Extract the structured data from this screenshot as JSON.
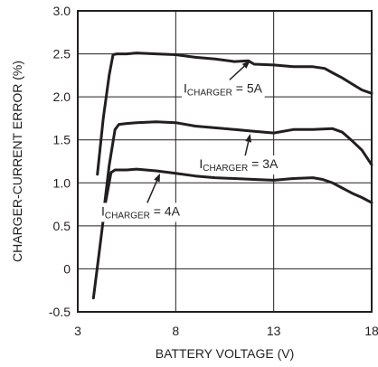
{
  "chart_data": {
    "type": "line",
    "title": "",
    "xlabel": "BATTERY VOLTAGE (V)",
    "ylabel": "CHARGER-CURRENT ERROR (%)",
    "xlim": [
      3,
      18
    ],
    "ylim": [
      -0.5,
      3.0
    ],
    "x_ticks": [
      3,
      8,
      13,
      18
    ],
    "y_ticks": [
      3.0,
      2.5,
      2.0,
      1.5,
      1.0,
      0.5,
      0,
      -0.5
    ],
    "x_tick_labels": [
      "3",
      "8",
      "13",
      "18"
    ],
    "y_tick_labels": [
      "3.0",
      "2.5",
      "2.0",
      "1.5",
      "1.0",
      "0.5",
      "0",
      "-0.5"
    ],
    "grid": true,
    "legend": "none",
    "series": [
      {
        "label_prefix": "I",
        "label_sub": "CHARGER",
        "label_suffix": " = 5A",
        "x": [
          4.0,
          4.3,
          4.6,
          4.8,
          5.0,
          5.5,
          6.0,
          7.0,
          8.0,
          9.0,
          10.0,
          11.0,
          11.7,
          12.0,
          13.0,
          14.0,
          15.0,
          15.6,
          16.0,
          16.5,
          17.0,
          17.5,
          18.0
        ],
        "y": [
          1.1,
          1.75,
          2.25,
          2.49,
          2.5,
          2.5,
          2.51,
          2.5,
          2.49,
          2.46,
          2.44,
          2.41,
          2.42,
          2.38,
          2.37,
          2.35,
          2.35,
          2.33,
          2.28,
          2.22,
          2.15,
          2.08,
          2.04
        ]
      },
      {
        "label_prefix": "I",
        "label_sub": "CHARGER",
        "label_suffix": " = 3A",
        "x": [
          4.3,
          4.6,
          4.9,
          5.1,
          5.5,
          6.0,
          7.0,
          8.0,
          9.0,
          10.0,
          11.0,
          12.0,
          13.0,
          14.0,
          15.0,
          16.0,
          16.5,
          17.0,
          17.5,
          18.0
        ],
        "y": [
          0.62,
          1.2,
          1.62,
          1.68,
          1.69,
          1.7,
          1.71,
          1.7,
          1.66,
          1.64,
          1.62,
          1.6,
          1.58,
          1.62,
          1.62,
          1.63,
          1.59,
          1.49,
          1.38,
          1.21
        ]
      },
      {
        "label_prefix": "I",
        "label_sub": "CHARGER",
        "label_suffix": " = 4A",
        "x": [
          3.8,
          4.1,
          4.4,
          4.7,
          4.9,
          5.5,
          6.0,
          7.0,
          8.0,
          9.0,
          10.0,
          11.0,
          12.0,
          13.0,
          14.0,
          15.0,
          15.5,
          16.0,
          16.5,
          17.0,
          17.5,
          18.0
        ],
        "y": [
          -0.34,
          0.2,
          0.75,
          1.12,
          1.15,
          1.15,
          1.16,
          1.14,
          1.11,
          1.08,
          1.06,
          1.05,
          1.04,
          1.03,
          1.05,
          1.06,
          1.04,
          1.0,
          0.94,
          0.88,
          0.83,
          0.77
        ]
      }
    ],
    "annotations": [
      {
        "prefix": "I",
        "sub": "CHARGER",
        "suffix": " = 5A",
        "text_x": 8.4,
        "text_y": 2.05,
        "arrow_to_x": 11.8,
        "arrow_to_y": 2.42
      },
      {
        "prefix": "I",
        "sub": "CHARGER",
        "suffix": " = 3A",
        "text_x": 9.2,
        "text_y": 1.17,
        "arrow_to_x": 11.8,
        "arrow_to_y": 1.57
      },
      {
        "prefix": "I",
        "sub": "CHARGER",
        "suffix": " = 4A",
        "text_x": 4.2,
        "text_y": 0.62,
        "arrow_to_x": 7.2,
        "arrow_to_y": 1.11
      }
    ]
  }
}
